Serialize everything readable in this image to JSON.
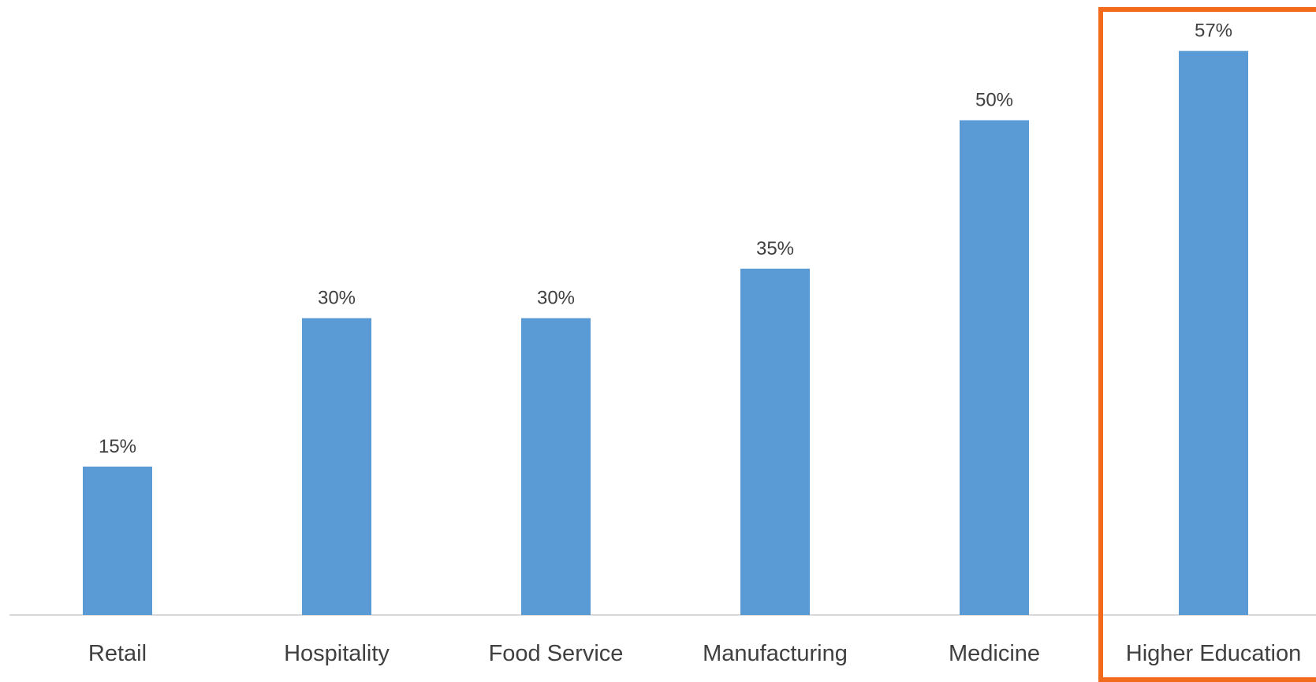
{
  "chart_data": {
    "type": "bar",
    "title": "",
    "xlabel": "",
    "ylabel": "",
    "categories": [
      "Retail",
      "Hospitality",
      "Food Service",
      "Manufacturing",
      "Medicine",
      "Higher Education"
    ],
    "values": [
      15,
      30,
      30,
      35,
      50,
      57
    ],
    "value_labels": [
      "15%",
      "30%",
      "30%",
      "35%",
      "50%",
      "57%"
    ],
    "unit": "%",
    "ylim": [
      0,
      60
    ],
    "grid": false,
    "legend": "none",
    "highlighted_category": "Higher Education"
  },
  "colors": {
    "bar": "#5B9BD5",
    "highlight_box": "#F26B1D",
    "axis": "#D9D9D9",
    "text": "#404040",
    "background": "#FFFFFF"
  }
}
